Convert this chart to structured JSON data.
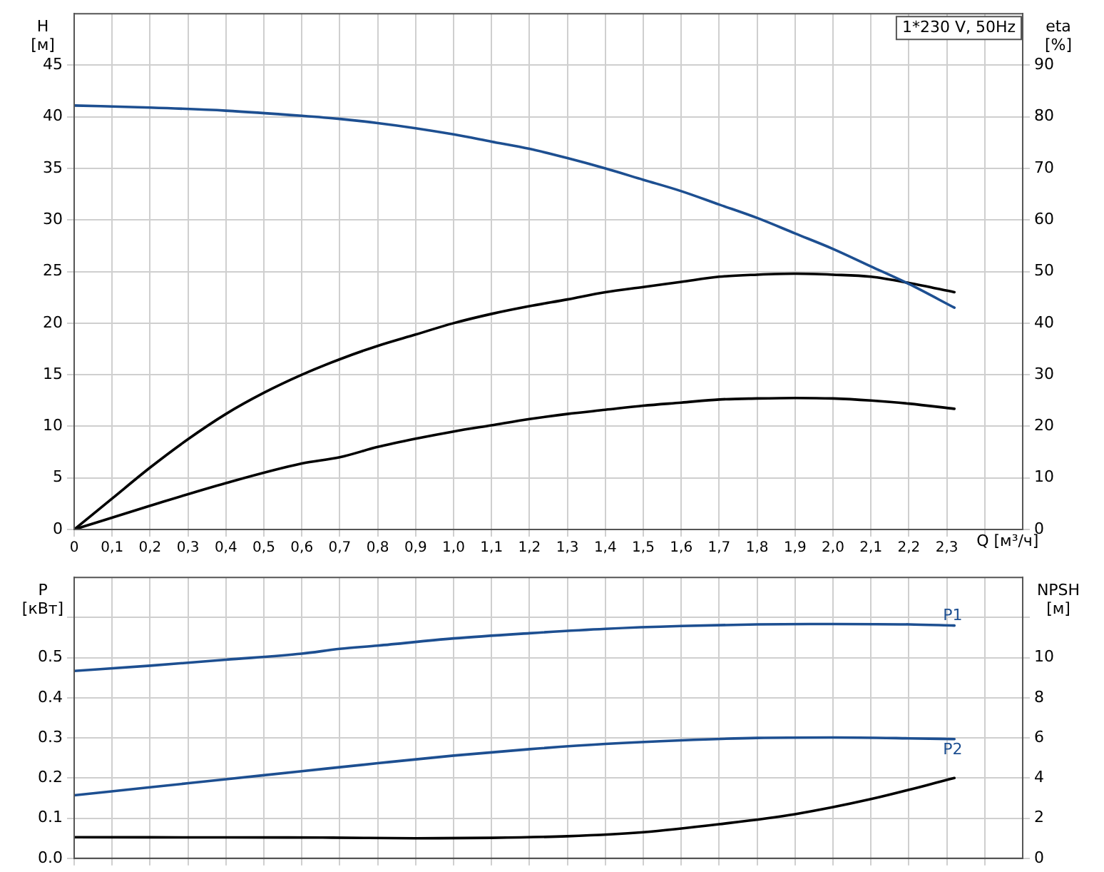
{
  "chart_data": [
    {
      "type": "line",
      "xlabel": "Q [м³/ч]",
      "ylabel": "H [м]",
      "y2label": "eta [%]",
      "xlim": [
        0,
        2.5
      ],
      "xticks": [
        0,
        {
          "value": 0.1,
          "label": "0,1"
        },
        {
          "value": 0.2,
          "label": "0,2"
        },
        {
          "value": 0.3,
          "label": "0,3"
        },
        {
          "value": 0.4,
          "label": "0,4"
        },
        {
          "value": 0.5,
          "label": "0,5"
        },
        {
          "value": 0.6,
          "label": "0,6"
        },
        {
          "value": 0.7,
          "label": "0,7"
        },
        {
          "value": 0.8,
          "label": "0,8"
        },
        {
          "value": 0.9,
          "label": "0,9"
        },
        {
          "value": 1.0,
          "label": "1,0"
        },
        {
          "value": 1.1,
          "label": "1,1"
        },
        {
          "value": 1.2,
          "label": "1,2"
        },
        {
          "value": 1.3,
          "label": "1,3"
        },
        {
          "value": 1.4,
          "label": "1,4"
        },
        {
          "value": 1.5,
          "label": "1,5"
        },
        {
          "value": 1.6,
          "label": "1,6"
        },
        {
          "value": 1.7,
          "label": "1,7"
        },
        {
          "value": 1.8,
          "label": "1,8"
        },
        {
          "value": 1.9,
          "label": "1,9"
        },
        {
          "value": 2.0,
          "label": "2,0"
        },
        {
          "value": 2.1,
          "label": "2,1"
        },
        {
          "value": 2.2,
          "label": "2,2"
        },
        {
          "value": 2.3,
          "label": "2,3"
        },
        {
          "value": 2.4,
          "label": null
        }
      ],
      "ylim": [
        0,
        50
      ],
      "yticks": [
        0,
        5,
        10,
        15,
        20,
        25,
        30,
        35,
        40,
        45
      ],
      "y2lim": [
        0,
        100
      ],
      "y2ticks": [
        0,
        10,
        20,
        30,
        40,
        50,
        60,
        70,
        80,
        90
      ],
      "grid": true,
      "legend": false,
      "marker": "none",
      "annotations": [
        "1*230 V, 50Hz"
      ],
      "series": [
        {
          "color": "#1d4f91",
          "x": [
            0,
            0.2,
            0.4,
            0.6,
            0.7,
            0.8,
            0.9,
            1.0,
            1.1,
            1.2,
            1.3,
            1.4,
            1.5,
            1.6,
            1.7,
            1.8,
            1.9,
            2.0,
            2.1,
            2.2,
            2.32
          ],
          "values": [
            41.1,
            40.9,
            40.6,
            40.1,
            39.8,
            39.4,
            38.9,
            38.3,
            37.6,
            36.9,
            36.0,
            35.0,
            33.9,
            32.8,
            31.5,
            30.2,
            28.7,
            27.2,
            25.5,
            23.8,
            21.5
          ]
        },
        {
          "color": "#000000",
          "axis": "y2",
          "x": [
            0,
            0.1,
            0.2,
            0.3,
            0.4,
            0.5,
            0.6,
            0.7,
            0.8,
            0.9,
            1.0,
            1.1,
            1.2,
            1.3,
            1.4,
            1.5,
            1.6,
            1.7,
            1.8,
            1.9,
            2.0,
            2.1,
            2.2,
            2.32
          ],
          "values": [
            0,
            6,
            12,
            17.5,
            22.4,
            26.5,
            30,
            33,
            35.6,
            37.8,
            40,
            41.8,
            43.3,
            44.6,
            46,
            47,
            48,
            49,
            49.4,
            49.6,
            49.4,
            49,
            47.8,
            46
          ]
        },
        {
          "color": "#000000",
          "axis": "y2",
          "x": [
            0,
            0.2,
            0.4,
            0.6,
            0.7,
            0.8,
            0.9,
            1.0,
            1.1,
            1.2,
            1.3,
            1.4,
            1.5,
            1.6,
            1.7,
            1.8,
            1.9,
            2.0,
            2.1,
            2.2,
            2.32
          ],
          "values": [
            0,
            4.6,
            9,
            12.8,
            14,
            16,
            17.6,
            19,
            20.2,
            21.4,
            22.4,
            23.2,
            24,
            24.6,
            25.2,
            25.4,
            25.5,
            25.4,
            25,
            24.4,
            23.4
          ]
        }
      ]
    },
    {
      "type": "line",
      "ylabel": "P [кВт]",
      "y2label": "NPSH [м]",
      "xlim": [
        0,
        2.5
      ],
      "xticks": [
        0,
        0.1,
        0.2,
        0.3,
        0.4,
        0.5,
        0.6,
        0.7,
        0.8,
        0.9,
        1.0,
        1.1,
        1.2,
        1.3,
        1.4,
        1.5,
        1.6,
        1.7,
        1.8,
        1.9,
        2.0,
        2.1,
        2.2,
        2.3,
        2.4
      ],
      "ylim": [
        0,
        0.7
      ],
      "yticks": [
        {
          "value": 0,
          "label": "0.0"
        },
        0.1,
        0.2,
        0.3,
        0.4,
        0.5,
        {
          "value": 0.6,
          "label": null
        }
      ],
      "y2lim": [
        0,
        14
      ],
      "y2ticks": [
        0,
        2,
        4,
        6,
        8,
        10,
        {
          "value": 12,
          "label": null
        }
      ],
      "grid": true,
      "legend": false,
      "marker": "none",
      "tick_labels": "y",
      "series": [
        {
          "name": "P1",
          "color": "#1d4f91",
          "x": [
            0,
            0.2,
            0.4,
            0.6,
            0.7,
            0.8,
            1.0,
            1.2,
            1.4,
            1.6,
            1.8,
            2.0,
            2.2,
            2.32
          ],
          "values": [
            0.467,
            0.48,
            0.495,
            0.51,
            0.522,
            0.53,
            0.548,
            0.561,
            0.572,
            0.579,
            0.583,
            0.584,
            0.583,
            0.58
          ]
        },
        {
          "name": "P2",
          "color": "#1d4f91",
          "x": [
            0,
            0.2,
            0.4,
            0.6,
            0.8,
            1.0,
            1.2,
            1.4,
            1.6,
            1.8,
            2.0,
            2.2,
            2.32
          ],
          "values": [
            0.157,
            0.177,
            0.197,
            0.217,
            0.237,
            0.256,
            0.272,
            0.285,
            0.294,
            0.3,
            0.301,
            0.299,
            0.297
          ]
        },
        {
          "color": "#000000",
          "axis": "y2",
          "x": [
            0,
            0.4,
            0.68,
            0.9,
            1.1,
            1.3,
            1.5,
            1.7,
            1.9,
            2.1,
            2.32
          ],
          "values": [
            1.05,
            1.04,
            1.03,
            1.0,
            1.02,
            1.1,
            1.3,
            1.7,
            2.2,
            2.95,
            4.0
          ]
        }
      ]
    }
  ]
}
